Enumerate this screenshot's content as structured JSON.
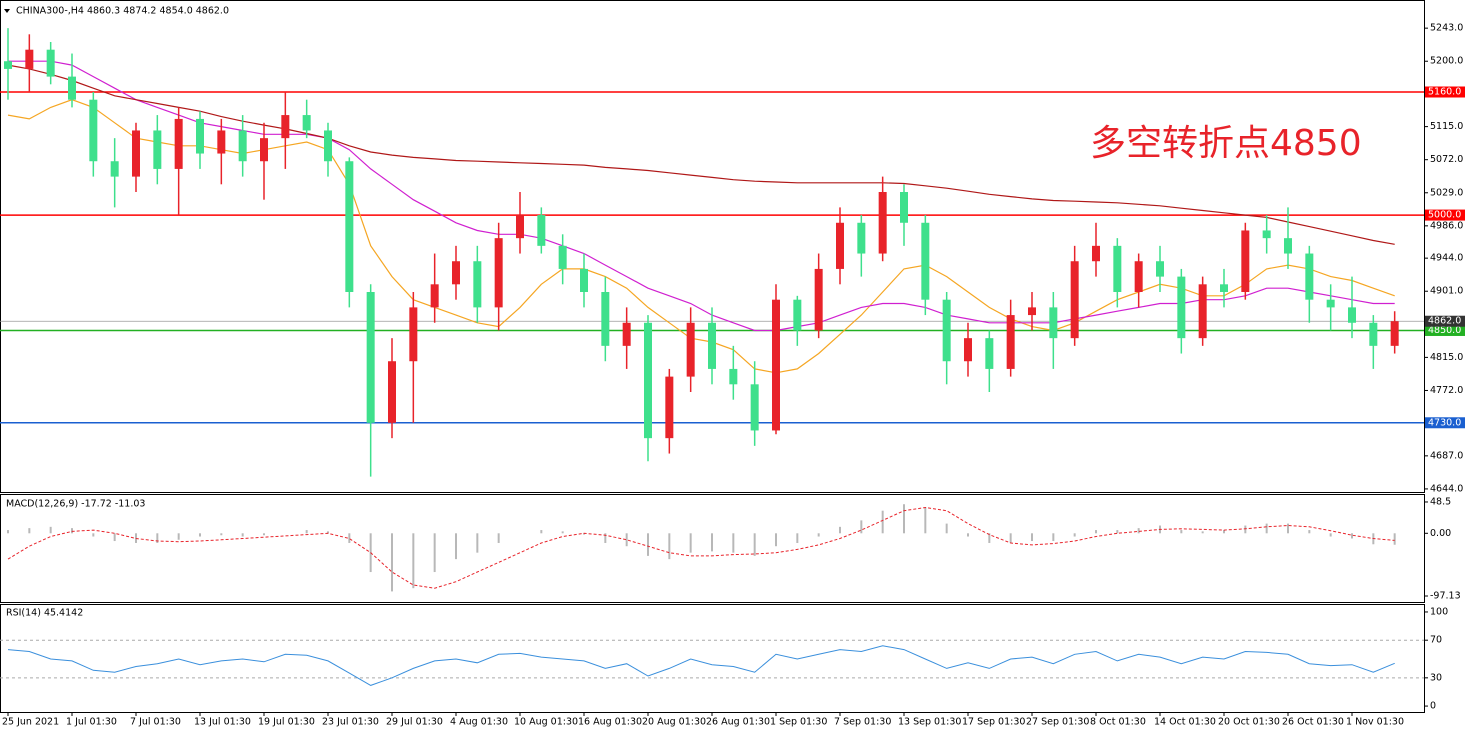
{
  "chart_data": [
    {
      "type": "candlestick",
      "title": "CHINA300-,H4  4860.3 4874.2 4854.0 4862.0",
      "annotation": "多空转折点4850",
      "annotation_color": "#e8232a",
      "categories": [
        "25 Jun 2021",
        null,
        null,
        "1 Jul 01:30",
        null,
        null,
        "7 Jul 01:30",
        null,
        null,
        "13 Jul 01:30",
        null,
        null,
        "19 Jul 01:30",
        null,
        null,
        "23 Jul 01:30",
        null,
        null,
        "29 Jul 01:30",
        null,
        null,
        "4 Aug 01:30",
        null,
        null,
        "10 Aug 01:30",
        null,
        null,
        "16 Aug 01:30",
        null,
        null,
        "20 Aug 01:30",
        null,
        null,
        "26 Aug 01:30",
        null,
        null,
        "1 Sep 01:30",
        null,
        null,
        "7 Sep 01:30",
        null,
        null,
        "13 Sep 01:30",
        null,
        null,
        "17 Sep 01:30",
        null,
        null,
        "27 Sep 01:30",
        null,
        null,
        "8 Oct 01:30",
        null,
        null,
        "14 Oct 01:30",
        null,
        null,
        "20 Oct 01:30",
        null,
        null,
        "26 Oct 01:30",
        null,
        null,
        "1 Nov 01:30",
        null,
        null
      ],
      "open": [
        5200,
        5190,
        5215,
        5180,
        5150,
        5070,
        5050,
        5110,
        5060,
        5125,
        5080,
        5110,
        5070,
        5100,
        5130,
        5110,
        5070,
        4900,
        4730,
        4810,
        4880,
        4910,
        4940,
        4880,
        4970,
        5000,
        4960,
        4930,
        4900,
        4830,
        4860,
        4710,
        4790,
        4860,
        4800,
        4780,
        4720,
        4890,
        4850,
        4930,
        4990,
        4950,
        5030,
        4990,
        4890,
        4810,
        4840,
        4800,
        4870,
        4880,
        4840,
        4940,
        4960,
        4900,
        4940,
        4920,
        4840,
        4910,
        4900,
        4980,
        4970,
        4950,
        4890,
        4880,
        4860,
        4830
      ],
      "high": [
        5243,
        5235,
        5225,
        5210,
        5160,
        5100,
        5120,
        5130,
        5140,
        5135,
        5125,
        5130,
        5120,
        5160,
        5150,
        5120,
        5075,
        4910,
        4840,
        4900,
        4950,
        4960,
        4960,
        4990,
        5030,
        5010,
        4975,
        4950,
        4920,
        4880,
        4870,
        4800,
        4880,
        4880,
        4830,
        4810,
        4910,
        4895,
        4950,
        5010,
        5000,
        5050,
        5040,
        5000,
        4900,
        4860,
        4850,
        4890,
        4900,
        4900,
        4960,
        4990,
        4970,
        4950,
        4960,
        4930,
        4920,
        4930,
        4990,
        5000,
        5010,
        4960,
        4910,
        4920,
        4870,
        4875
      ],
      "low": [
        5150,
        5160,
        5170,
        5140,
        5050,
        5010,
        5030,
        5040,
        5000,
        5060,
        5040,
        5050,
        5020,
        5060,
        5100,
        5050,
        4880,
        4660,
        4710,
        4730,
        4860,
        4890,
        4860,
        4850,
        4950,
        4950,
        4910,
        4880,
        4810,
        4800,
        4680,
        4690,
        4770,
        4780,
        4760,
        4700,
        4715,
        4830,
        4840,
        4910,
        4920,
        4940,
        4960,
        4870,
        4780,
        4790,
        4770,
        4790,
        4850,
        4800,
        4830,
        4920,
        4880,
        4880,
        4900,
        4820,
        4830,
        4880,
        4890,
        4950,
        4930,
        4860,
        4850,
        4840,
        4800,
        4820
      ],
      "close": [
        5190,
        5215,
        5180,
        5150,
        5070,
        5050,
        5110,
        5060,
        5125,
        5080,
        5110,
        5070,
        5100,
        5130,
        5110,
        5070,
        4900,
        4730,
        4810,
        4880,
        4910,
        4940,
        4880,
        4970,
        5000,
        4960,
        4930,
        4900,
        4830,
        4860,
        4710,
        4790,
        4860,
        4800,
        4780,
        4720,
        4890,
        4850,
        4930,
        4990,
        4950,
        5030,
        4990,
        4890,
        4810,
        4840,
        4800,
        4870,
        4880,
        4840,
        4940,
        4960,
        4900,
        4940,
        4920,
        4840,
        4910,
        4900,
        4980,
        4970,
        4950,
        4890,
        4880,
        4860,
        4830,
        4862
      ],
      "up_color": "#e8232a",
      "down_color": "#3ee08c",
      "series": [
        {
          "color": "#f5a623",
          "values": [
            5130,
            5125,
            5140,
            5150,
            5140,
            5120,
            5100,
            5095,
            5090,
            5090,
            5085,
            5080,
            5085,
            5090,
            5095,
            5085,
            5040,
            4960,
            4920,
            4890,
            4880,
            4870,
            4860,
            4855,
            4880,
            4910,
            4930,
            4930,
            4920,
            4905,
            4880,
            4860,
            4840,
            4835,
            4825,
            4800,
            4795,
            4800,
            4820,
            4845,
            4870,
            4900,
            4930,
            4935,
            4920,
            4900,
            4880,
            4865,
            4855,
            4850,
            4860,
            4875,
            4890,
            4900,
            4910,
            4905,
            4895,
            4895,
            4910,
            4930,
            4935,
            4930,
            4920,
            4915,
            4905,
            4895
          ]
        },
        {
          "color": "#d020d0",
          "values": [
            5200,
            5200,
            5200,
            5195,
            5180,
            5165,
            5150,
            5140,
            5130,
            5120,
            5115,
            5110,
            5105,
            5105,
            5105,
            5100,
            5085,
            5060,
            5040,
            5020,
            5005,
            4990,
            4980,
            4975,
            4975,
            4970,
            4960,
            4950,
            4935,
            4920,
            4905,
            4895,
            4885,
            4870,
            4860,
            4850,
            4850,
            4855,
            4860,
            4870,
            4880,
            4885,
            4885,
            4880,
            4870,
            4865,
            4860,
            4860,
            4860,
            4860,
            4865,
            4870,
            4875,
            4880,
            4885,
            4885,
            4890,
            4890,
            4895,
            4905,
            4905,
            4900,
            4895,
            4890,
            4885,
            4885
          ]
        },
        {
          "color": "#b01818",
          "values": [
            5195,
            5190,
            5183,
            5175,
            5165,
            5155,
            5150,
            5145,
            5140,
            5135,
            5128,
            5122,
            5117,
            5112,
            5106,
            5100,
            5090,
            5082,
            5078,
            5075,
            5073,
            5071,
            5070,
            5069,
            5068,
            5067,
            5066,
            5065,
            5062,
            5060,
            5058,
            5055,
            5052,
            5049,
            5046,
            5044,
            5043,
            5042,
            5042,
            5042,
            5042,
            5042,
            5041,
            5038,
            5035,
            5031,
            5027,
            5024,
            5021,
            5019,
            5018,
            5017,
            5016,
            5014,
            5012,
            5009,
            5006,
            5003,
            5000,
            4997,
            4991,
            4985,
            4979,
            4973,
            4967,
            4962
          ]
        }
      ],
      "levels": [
        {
          "value": 5160,
          "label": "5160.0",
          "color": "#ff0000"
        },
        {
          "value": 5000,
          "label": "5000.0",
          "color": "#ff0000"
        },
        {
          "value": 4850,
          "label": "4850.0",
          "color": "#22b022"
        },
        {
          "value": 4730,
          "label": "4730.0",
          "color": "#1a5fd0"
        }
      ],
      "last_price": {
        "value": 4862,
        "label": "4862.0",
        "color": "#9a9a9a"
      },
      "ylim": [
        4640,
        5277
      ],
      "yticks": [
        {
          "value": 5243,
          "label": "5243.0"
        },
        {
          "value": 5200,
          "label": "5200.0"
        },
        {
          "value": 5115,
          "label": "5115.0"
        },
        {
          "value": 5072,
          "label": "5072.0"
        },
        {
          "value": 5029,
          "label": "5029.0"
        },
        {
          "value": 4986,
          "label": "4986.0"
        },
        {
          "value": 4944,
          "label": "4944.0"
        },
        {
          "value": 4901,
          "label": "4901.0"
        },
        {
          "value": 4815,
          "label": "4815.0"
        },
        {
          "value": 4772,
          "label": "4772.0"
        },
        {
          "value": 4687,
          "label": "4687.0"
        },
        {
          "value": 4644,
          "label": "4644.0"
        }
      ]
    },
    {
      "type": "bar",
      "title": "MACD(12,26,9) -17.72 -11.03",
      "series": [
        {
          "type": "bar",
          "color": "#b8b8b8",
          "values": [
            5,
            8,
            10,
            8,
            -5,
            -12,
            -15,
            -15,
            -10,
            -5,
            -3,
            -5,
            -3,
            0,
            5,
            3,
            -15,
            -60,
            -90,
            -85,
            -60,
            -40,
            -30,
            -15,
            0,
            5,
            3,
            -2,
            -15,
            -20,
            -35,
            -40,
            -30,
            -28,
            -30,
            -35,
            -20,
            -15,
            -5,
            10,
            20,
            35,
            45,
            40,
            15,
            -5,
            -15,
            -15,
            -12,
            -12,
            -5,
            5,
            5,
            8,
            12,
            5,
            3,
            5,
            12,
            15,
            15,
            5,
            -5,
            -8,
            -17,
            -17.72
          ]
        },
        {
          "type": "line",
          "dash": true,
          "color": "#e8232a",
          "values": [
            -40,
            -20,
            -5,
            3,
            5,
            0,
            -8,
            -12,
            -13,
            -12,
            -10,
            -8,
            -6,
            -4,
            -2,
            0,
            -8,
            -30,
            -60,
            -80,
            -85,
            -75,
            -60,
            -45,
            -30,
            -15,
            -5,
            0,
            -3,
            -10,
            -20,
            -30,
            -35,
            -35,
            -33,
            -32,
            -30,
            -25,
            -18,
            -8,
            5,
            20,
            35,
            40,
            35,
            15,
            -2,
            -15,
            -18,
            -16,
            -12,
            -5,
            0,
            3,
            6,
            7,
            6,
            5,
            7,
            10,
            12,
            10,
            4,
            -3,
            -8,
            -11.03
          ]
        }
      ],
      "ylim": [
        -106.4,
        59.3
      ],
      "yticks": [
        48.5,
        {
          "value": 0,
          "label": "0.00"
        },
        -97.13
      ]
    },
    {
      "type": "line",
      "title": "RSI(14) 45.4142",
      "color": "#3a8fdc",
      "values": [
        60,
        58,
        50,
        48,
        38,
        36,
        42,
        45,
        50,
        44,
        48,
        50,
        47,
        55,
        54,
        48,
        35,
        22,
        30,
        40,
        48,
        50,
        46,
        55,
        56,
        52,
        50,
        48,
        40,
        45,
        32,
        40,
        50,
        44,
        42,
        36,
        55,
        50,
        55,
        60,
        58,
        64,
        60,
        50,
        40,
        46,
        40,
        50,
        52,
        45,
        55,
        58,
        48,
        55,
        52,
        45,
        52,
        50,
        58,
        57,
        55,
        45,
        43,
        44,
        36,
        45.4142
      ],
      "levels": [
        70,
        30
      ],
      "ylim": [
        -6.3,
        107.4
      ],
      "yticks": [
        100,
        70,
        30,
        0
      ]
    }
  ]
}
